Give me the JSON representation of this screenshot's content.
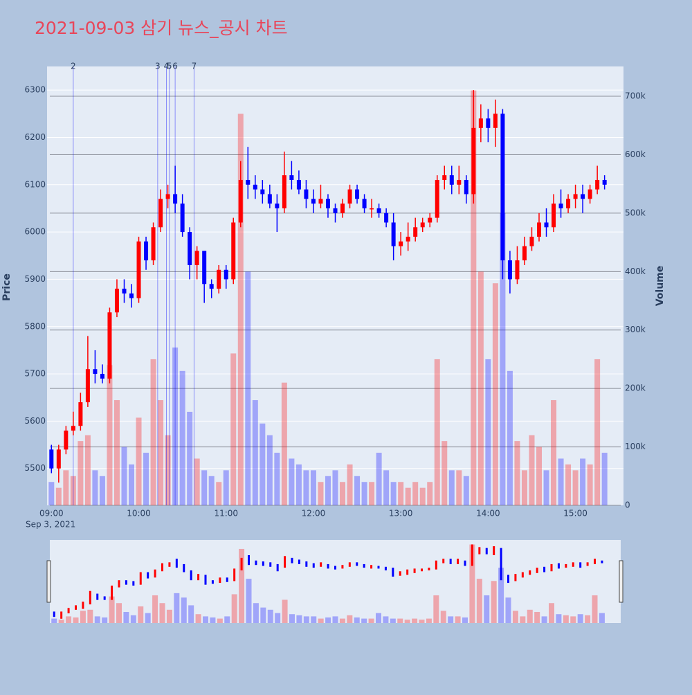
{
  "chart_data": {
    "type": "candlestick",
    "title": "2021-09-03 삼기 뉴스_공시 차트",
    "y_label": "Price",
    "y2_label": "Volume",
    "x_date_label": "Sep 3, 2021",
    "increasing_color": "#ff0000",
    "decreasing_color": "#0000ff",
    "rangeslider": true,
    "grid": true,
    "x": [
      "09:00",
      "09:05",
      "09:10",
      "09:15",
      "09:20",
      "09:25",
      "09:30",
      "09:35",
      "09:40",
      "09:45",
      "09:50",
      "09:55",
      "10:00",
      "10:05",
      "10:10",
      "10:15",
      "10:20",
      "10:25",
      "10:30",
      "10:35",
      "10:40",
      "10:45",
      "10:50",
      "10:55",
      "11:00",
      "11:05",
      "11:10",
      "11:15",
      "11:20",
      "11:25",
      "11:30",
      "11:35",
      "11:40",
      "11:45",
      "11:50",
      "11:55",
      "12:00",
      "12:05",
      "12:10",
      "12:15",
      "12:20",
      "12:25",
      "12:30",
      "12:35",
      "12:40",
      "12:45",
      "12:50",
      "12:55",
      "13:00",
      "13:05",
      "13:10",
      "13:15",
      "13:20",
      "13:25",
      "13:30",
      "13:35",
      "13:40",
      "13:45",
      "13:50",
      "13:55",
      "14:00",
      "14:05",
      "14:10",
      "14:15",
      "14:20",
      "14:25",
      "14:30",
      "14:35",
      "14:40",
      "14:45",
      "14:50",
      "14:55",
      "15:00",
      "15:05",
      "15:10",
      "15:15",
      "15:20"
    ],
    "open": [
      5540,
      5500,
      5540,
      5580,
      5590,
      5640,
      5710,
      5700,
      5690,
      5830,
      5880,
      5870,
      5860,
      5980,
      5940,
      6010,
      6070,
      6080,
      6060,
      6000,
      5930,
      5960,
      5890,
      5880,
      5920,
      5900,
      6020,
      6110,
      6100,
      6090,
      6080,
      6060,
      6050,
      6120,
      6110,
      6090,
      6070,
      6060,
      6070,
      6050,
      6040,
      6060,
      6090,
      6070,
      6050,
      6050,
      6040,
      6020,
      5970,
      5980,
      5990,
      6010,
      6020,
      6030,
      6110,
      6120,
      6100,
      6110,
      6080,
      6220,
      6240,
      6220,
      6250,
      5940,
      5900,
      5940,
      5970,
      5990,
      6020,
      6010,
      6060,
      6050,
      6070,
      6080,
      6070,
      6090,
      6110
    ],
    "high": [
      5550,
      5550,
      5590,
      5620,
      5660,
      5780,
      5750,
      5720,
      5840,
      5900,
      5900,
      5890,
      5990,
      5990,
      6020,
      6090,
      6100,
      6140,
      6080,
      6010,
      5970,
      5960,
      5900,
      5930,
      5930,
      6030,
      6150,
      6180,
      6120,
      6110,
      6100,
      6080,
      6170,
      6150,
      6130,
      6110,
      6090,
      6100,
      6080,
      6060,
      6070,
      6100,
      6100,
      6080,
      6070,
      6060,
      6050,
      6040,
      6000,
      6020,
      6030,
      6030,
      6040,
      6120,
      6140,
      6140,
      6140,
      6120,
      6300,
      6270,
      6260,
      6280,
      6260,
      5960,
      5970,
      5990,
      6010,
      6040,
      6050,
      6080,
      6090,
      6080,
      6100,
      6100,
      6100,
      6140,
      6120
    ],
    "low": [
      5490,
      5470,
      5530,
      5570,
      5580,
      5630,
      5680,
      5680,
      5680,
      5820,
      5850,
      5840,
      5850,
      5920,
      5930,
      6000,
      6050,
      6040,
      5990,
      5900,
      5900,
      5850,
      5860,
      5870,
      5880,
      5890,
      6010,
      6070,
      6070,
      6060,
      6050,
      6000,
      6040,
      6090,
      6080,
      6050,
      6040,
      6050,
      6030,
      6020,
      6030,
      6050,
      6060,
      6040,
      6030,
      6030,
      6010,
      5940,
      5950,
      5960,
      5980,
      6000,
      6010,
      6020,
      6090,
      6080,
      6080,
      6060,
      6060,
      6190,
      6190,
      6180,
      5900,
      5870,
      5890,
      5930,
      5960,
      5980,
      5990,
      6000,
      6030,
      6040,
      6050,
      6040,
      6060,
      6080,
      6090
    ],
    "close": [
      5500,
      5540,
      5580,
      5590,
      5640,
      5710,
      5700,
      5690,
      5830,
      5880,
      5870,
      5860,
      5980,
      5940,
      6010,
      6070,
      6080,
      6060,
      6000,
      5930,
      5960,
      5890,
      5880,
      5920,
      5900,
      6020,
      6110,
      6100,
      6090,
      6080,
      6060,
      6050,
      6120,
      6110,
      6090,
      6070,
      6060,
      6070,
      6050,
      6040,
      6060,
      6090,
      6070,
      6050,
      6050,
      6040,
      6020,
      5970,
      5980,
      5990,
      6010,
      6020,
      6030,
      6110,
      6120,
      6100,
      6110,
      6080,
      6220,
      6240,
      6220,
      6250,
      5940,
      5900,
      5940,
      5970,
      5990,
      6020,
      6010,
      6060,
      6050,
      6070,
      6080,
      6070,
      6090,
      6110,
      6100
    ],
    "volume": [
      40000,
      30000,
      60000,
      50000,
      110000,
      120000,
      60000,
      50000,
      240000,
      180000,
      100000,
      70000,
      150000,
      90000,
      250000,
      180000,
      120000,
      270000,
      230000,
      160000,
      80000,
      60000,
      50000,
      40000,
      60000,
      260000,
      670000,
      400000,
      180000,
      140000,
      120000,
      90000,
      210000,
      80000,
      70000,
      60000,
      60000,
      40000,
      50000,
      60000,
      40000,
      70000,
      50000,
      40000,
      40000,
      90000,
      60000,
      40000,
      40000,
      30000,
      40000,
      30000,
      40000,
      250000,
      110000,
      60000,
      60000,
      50000,
      710000,
      400000,
      250000,
      380000,
      500000,
      230000,
      110000,
      60000,
      120000,
      100000,
      60000,
      180000,
      80000,
      70000,
      60000,
      80000,
      70000,
      250000,
      90000
    ],
    "xlim": [
      "08:57",
      "15:33"
    ],
    "xticks": [
      "09:00",
      "10:00",
      "11:00",
      "12:00",
      "13:00",
      "14:00",
      "15:00"
    ],
    "ylim": [
      5422,
      6350
    ],
    "yticks": [
      5500,
      5600,
      5700,
      5800,
      5900,
      6000,
      6100,
      6200,
      6300
    ],
    "y2lim": [
      0,
      751000
    ],
    "y2ticks": [
      0,
      {
        "value": 100000,
        "label": "100k"
      },
      {
        "value": 200000,
        "label": "200k"
      },
      {
        "value": 300000,
        "label": "300k"
      },
      {
        "value": 400000,
        "label": "400k"
      },
      {
        "value": 500000,
        "label": "500k"
      },
      {
        "value": 600000,
        "label": "600k"
      },
      {
        "value": 700000,
        "label": "700k"
      }
    ],
    "annotations": [
      {
        "x": "09:15",
        "label": "2"
      },
      {
        "x": "10:13",
        "label": "3"
      },
      {
        "x": "10:19",
        "label": "4"
      },
      {
        "x": "10:21",
        "label": "5"
      },
      {
        "x": "10:25",
        "label": "6"
      },
      {
        "x": "10:38",
        "label": "7"
      }
    ]
  }
}
